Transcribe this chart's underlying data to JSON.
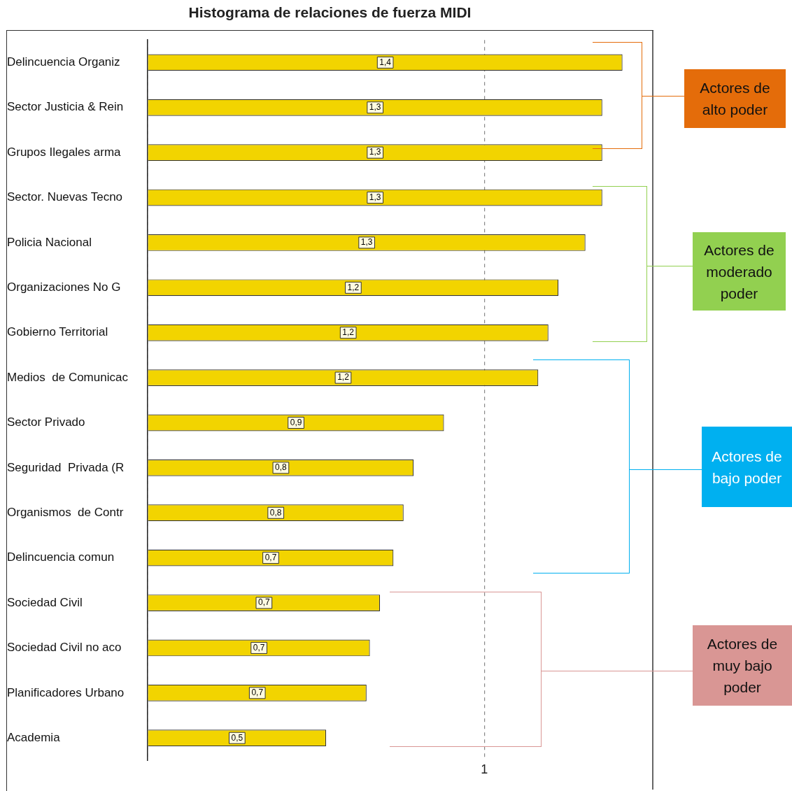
{
  "chart_data": {
    "type": "bar",
    "orientation": "horizontal",
    "title": "Histograma de relaciones de fuerza MIDI",
    "categories": [
      "Delincuencia Organiz",
      "Sector Justicia & Rein",
      "Grupos Ilegales arma",
      "Sector. Nuevas Tecno",
      "Policia Nacional",
      "Organizaciones No G",
      "Gobierno Territorial",
      "Medios  de Comunicac",
      "Sector Privado",
      "Seguridad  Privada (R",
      "Organismos  de Contr",
      "Delincuencia comun",
      "Sociedad Civil",
      "Sociedad Civil no aco",
      "Planificadores Urbano",
      "Academia"
    ],
    "values": [
      1.41,
      1.35,
      1.35,
      1.35,
      1.3,
      1.22,
      1.19,
      1.16,
      0.88,
      0.79,
      0.76,
      0.73,
      0.69,
      0.66,
      0.65,
      0.53
    ],
    "value_labels": [
      "1,4",
      "1,3",
      "1,3",
      "1,3",
      "1,3",
      "1,2",
      "1,2",
      "1,2",
      "0,9",
      "0,8",
      "0,8",
      "0,7",
      "0,7",
      "0,7",
      "0,7",
      "0,5"
    ],
    "color": "#f2d400",
    "xlim": [
      0,
      1.5
    ],
    "xticks": [
      {
        "value": 0,
        "label": null
      },
      1
    ],
    "grid": "x",
    "legend": false,
    "annotations": [
      "Actores de alto poder",
      "Actores de moderado poder",
      "Actores de bajo poder",
      "Actores de muy bajo poder"
    ]
  }
}
